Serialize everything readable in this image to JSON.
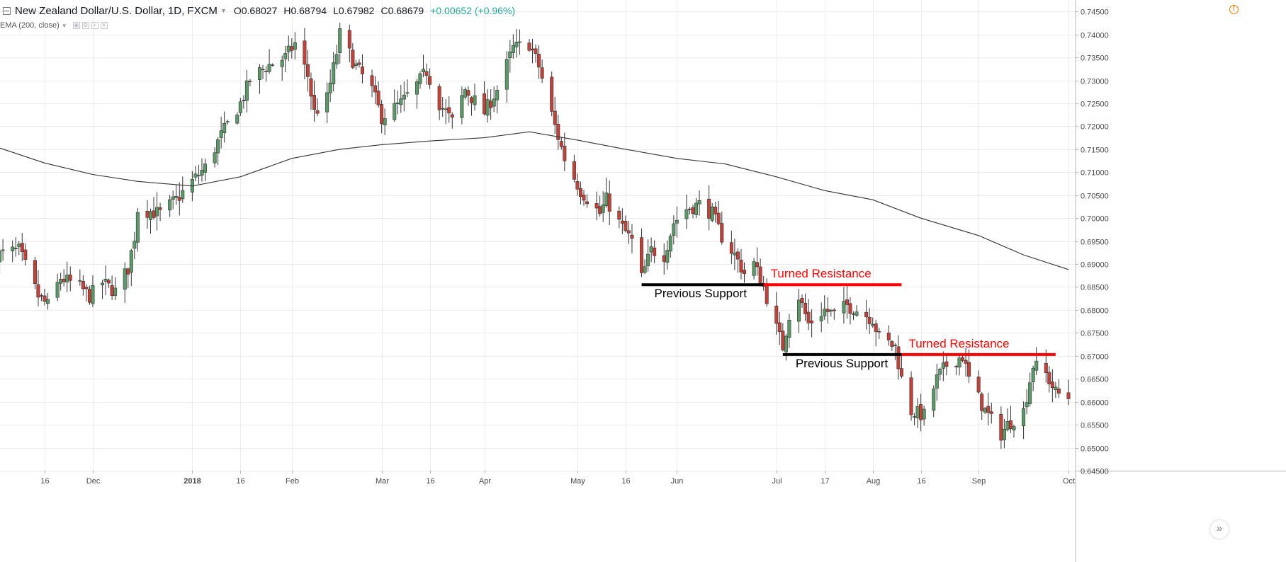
{
  "header": {
    "title": "New Zealand Dollar/U.S. Dollar, 1D, FXCM",
    "ohlc": {
      "open": "O0.68027",
      "high": "H0.68794",
      "low": "L0.67982",
      "close": "C0.68679",
      "change": "+0.00652 (+0.96%)"
    },
    "indicator": "EMA (200, close)"
  },
  "colors": {
    "up": "#5b9a68",
    "down": "#c4413a",
    "ema": "#333333",
    "support": "#000000",
    "resistance": "#ff0000"
  },
  "chart_data": {
    "type": "candlestick",
    "title": "New Zealand Dollar/U.S. Dollar, 1D, FXCM",
    "ylim": [
      0.645,
      0.7475
    ],
    "y_ticks": [
      "0.74500",
      "0.74000",
      "0.73500",
      "0.73000",
      "0.72500",
      "0.72000",
      "0.71500",
      "0.71000",
      "0.70500",
      "0.70000",
      "0.69500",
      "0.69000",
      "0.68500",
      "0.68000",
      "0.67500",
      "0.67000",
      "0.66500",
      "0.66000",
      "0.65500",
      "0.65000",
      "0.64500"
    ],
    "x_ticks": [
      {
        "label": "16",
        "date": "2017-11-16"
      },
      {
        "label": "Dec",
        "date": "2017-12-01"
      },
      {
        "label": "2018",
        "date": "2018-01-01"
      },
      {
        "label": "16",
        "date": "2018-01-16"
      },
      {
        "label": "Feb",
        "date": "2018-02-01"
      },
      {
        "label": "Mar",
        "date": "2018-03-01"
      },
      {
        "label": "16",
        "date": "2018-03-16"
      },
      {
        "label": "Apr",
        "date": "2018-04-02"
      },
      {
        "label": "May",
        "date": "2018-05-01"
      },
      {
        "label": "16",
        "date": "2018-05-16"
      },
      {
        "label": "Jun",
        "date": "2018-06-01"
      },
      {
        "label": "Jul",
        "date": "2018-07-02"
      },
      {
        "label": "17",
        "date": "2018-07-17"
      },
      {
        "label": "Aug",
        "date": "2018-08-01"
      },
      {
        "label": "16",
        "date": "2018-08-16"
      },
      {
        "label": "Sep",
        "date": "2018-09-03"
      },
      {
        "label": "Oct",
        "date": "2018-10-01"
      }
    ],
    "close_anchors": [
      [
        "2017-11-01",
        0.692
      ],
      [
        "2017-11-08",
        0.693
      ],
      [
        "2017-11-14",
        0.683
      ],
      [
        "2017-11-17",
        0.681
      ],
      [
        "2017-11-21",
        0.687
      ],
      [
        "2017-11-27",
        0.685
      ],
      [
        "2017-11-30",
        0.683
      ],
      [
        "2017-12-04",
        0.686
      ],
      [
        "2017-12-08",
        0.684
      ],
      [
        "2017-12-12",
        0.689
      ],
      [
        "2017-12-14",
        0.696
      ],
      [
        "2017-12-15",
        0.702
      ],
      [
        "2017-12-22",
        0.701
      ],
      [
        "2017-12-27",
        0.704
      ],
      [
        "2018-01-01",
        0.708
      ],
      [
        "2018-01-05",
        0.711
      ],
      [
        "2018-01-10",
        0.718
      ],
      [
        "2018-01-16",
        0.725
      ],
      [
        "2018-01-19",
        0.73
      ],
      [
        "2018-01-24",
        0.733
      ],
      [
        "2018-01-30",
        0.735
      ],
      [
        "2018-02-02",
        0.738
      ],
      [
        "2018-02-06",
        0.731
      ],
      [
        "2018-02-08",
        0.723
      ],
      [
        "2018-02-12",
        0.726
      ],
      [
        "2018-02-15",
        0.736
      ],
      [
        "2018-02-16",
        0.74
      ],
      [
        "2018-02-21",
        0.733
      ],
      [
        "2018-02-26",
        0.728
      ],
      [
        "2018-03-01",
        0.722
      ],
      [
        "2018-03-07",
        0.725
      ],
      [
        "2018-03-12",
        0.729
      ],
      [
        "2018-03-15",
        0.732
      ],
      [
        "2018-03-19",
        0.725
      ],
      [
        "2018-03-23",
        0.721
      ],
      [
        "2018-03-27",
        0.728
      ],
      [
        "2018-04-02",
        0.723
      ],
      [
        "2018-04-06",
        0.728
      ],
      [
        "2018-04-11",
        0.737
      ],
      [
        "2018-04-16",
        0.738
      ],
      [
        "2018-04-19",
        0.733
      ],
      [
        "2018-04-24",
        0.72
      ],
      [
        "2018-04-27",
        0.713
      ],
      [
        "2018-05-02",
        0.706
      ],
      [
        "2018-05-08",
        0.701
      ],
      [
        "2018-05-10",
        0.704
      ],
      [
        "2018-05-14",
        0.699
      ],
      [
        "2018-05-18",
        0.695
      ],
      [
        "2018-05-21",
        0.687
      ],
      [
        "2018-05-24",
        0.693
      ],
      [
        "2018-05-28",
        0.692
      ],
      [
        "2018-05-31",
        0.699
      ],
      [
        "2018-06-04",
        0.702
      ],
      [
        "2018-06-08",
        0.703
      ],
      [
        "2018-06-12",
        0.701
      ],
      [
        "2018-06-15",
        0.696
      ],
      [
        "2018-06-19",
        0.692
      ],
      [
        "2018-06-22",
        0.688
      ],
      [
        "2018-06-25",
        0.69
      ],
      [
        "2018-06-28",
        0.685
      ],
      [
        "2018-07-02",
        0.676
      ],
      [
        "2018-07-04",
        0.672
      ],
      [
        "2018-07-06",
        0.679
      ],
      [
        "2018-07-09",
        0.683
      ],
      [
        "2018-07-12",
        0.677
      ],
      [
        "2018-07-17",
        0.68
      ],
      [
        "2018-07-20",
        0.679
      ],
      [
        "2018-07-24",
        0.681
      ],
      [
        "2018-07-27",
        0.68
      ],
      [
        "2018-08-01",
        0.678
      ],
      [
        "2018-08-03",
        0.674
      ],
      [
        "2018-08-08",
        0.672
      ],
      [
        "2018-08-10",
        0.665
      ],
      [
        "2018-08-13",
        0.658
      ],
      [
        "2018-08-17",
        0.657
      ],
      [
        "2018-08-21",
        0.665
      ],
      [
        "2018-08-24",
        0.668
      ],
      [
        "2018-08-29",
        0.67
      ],
      [
        "2018-08-31",
        0.665
      ],
      [
        "2018-09-05",
        0.658
      ],
      [
        "2018-09-10",
        0.653
      ],
      [
        "2018-09-12",
        0.655
      ],
      [
        "2018-09-17",
        0.658
      ],
      [
        "2018-09-20",
        0.668
      ],
      [
        "2018-09-24",
        0.666
      ],
      [
        "2018-09-27",
        0.662
      ],
      [
        "2018-10-01",
        0.661
      ]
    ],
    "ema_200": {
      "name": "EMA (200, close)",
      "points": [
        [
          "2017-11-01",
          0.7155
        ],
        [
          "2017-11-16",
          0.712
        ],
        [
          "2017-12-01",
          0.7095
        ],
        [
          "2017-12-15",
          0.708
        ],
        [
          "2018-01-01",
          0.707
        ],
        [
          "2018-01-16",
          0.709
        ],
        [
          "2018-02-01",
          0.713
        ],
        [
          "2018-02-16",
          0.715
        ],
        [
          "2018-03-01",
          0.716
        ],
        [
          "2018-03-16",
          0.7168
        ],
        [
          "2018-04-02",
          0.7175
        ],
        [
          "2018-04-16",
          0.7188
        ],
        [
          "2018-05-01",
          0.717
        ],
        [
          "2018-05-16",
          0.715
        ],
        [
          "2018-06-01",
          0.713
        ],
        [
          "2018-06-16",
          0.7118
        ],
        [
          "2018-07-02",
          0.709
        ],
        [
          "2018-07-17",
          0.706
        ],
        [
          "2018-08-01",
          0.704
        ],
        [
          "2018-08-16",
          0.7
        ],
        [
          "2018-09-03",
          0.6962
        ],
        [
          "2018-09-17",
          0.692
        ],
        [
          "2018-10-01",
          0.6888
        ]
      ]
    },
    "annotations": [
      {
        "name": "support-line-1",
        "type": "support",
        "label": "Previous Support",
        "price": 0.6855,
        "x1": "2018-05-21",
        "x2": "2018-06-28"
      },
      {
        "name": "resistance-line-1",
        "type": "resistance",
        "label": "Turned Resistance",
        "price": 0.6855,
        "x1": "2018-06-28",
        "x2": "2018-08-10"
      },
      {
        "name": "support-line-2",
        "type": "support",
        "label": "Previous Support",
        "price": 0.6703,
        "x1": "2018-07-04",
        "x2": "2018-08-10"
      },
      {
        "name": "resistance-line-2",
        "type": "resistance",
        "label": "Turned Resistance",
        "price": 0.6703,
        "x1": "2018-08-10",
        "x2": "2018-09-27"
      }
    ]
  }
}
